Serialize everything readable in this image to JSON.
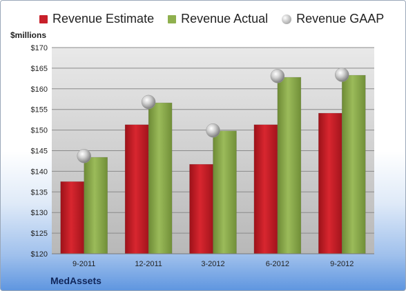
{
  "chart_data": {
    "type": "bar",
    "unit_label": "$millions",
    "categories": [
      "9-2011",
      "12-2011",
      "3-2012",
      "6-2012",
      "9-2012"
    ],
    "series": [
      {
        "name": "Revenue Estimate",
        "type": "bar",
        "color": "#c8202a",
        "values": [
          137.5,
          151.3,
          141.7,
          151.3,
          154.1
        ]
      },
      {
        "name": "Revenue Actual",
        "type": "bar",
        "color": "#8fb04e",
        "values": [
          143.4,
          156.6,
          149.8,
          162.8,
          163.3
        ]
      },
      {
        "name": "Revenue GAAP",
        "type": "marker",
        "color": "#a8a8a8",
        "values": [
          143.7,
          156.8,
          149.9,
          163.1,
          163.4
        ]
      }
    ],
    "ylim": [
      120,
      170
    ],
    "yticks": [
      120,
      125,
      130,
      135,
      140,
      145,
      150,
      155,
      160,
      165,
      170
    ],
    "ytick_prefix": "$",
    "grid": true,
    "legend_position": "top"
  },
  "brand": "MedAssets"
}
